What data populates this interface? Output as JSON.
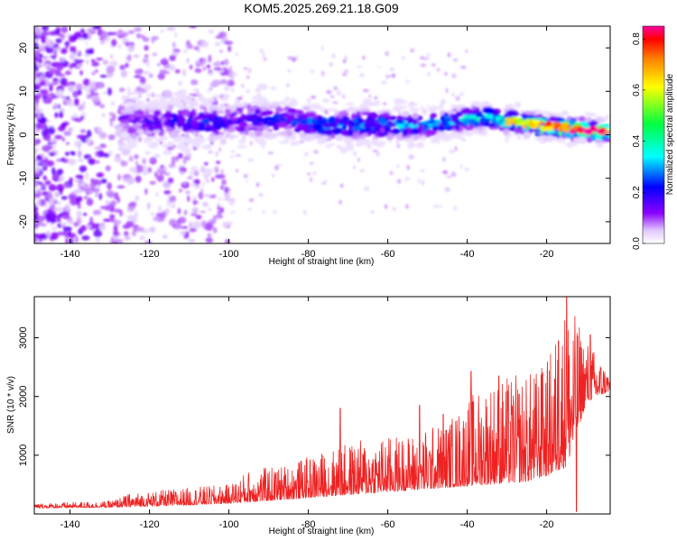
{
  "title": "KOM5.2025.269.21.18.G09",
  "chart_data": [
    {
      "type": "heatmap",
      "name": "spectrogram",
      "xlabel": "Height of straight line (km)",
      "ylabel": "Frequency (Hz)",
      "xlim": [
        -149,
        -4
      ],
      "ylim": [
        -25,
        25
      ],
      "xticks": [
        -140,
        -120,
        -100,
        -80,
        -60,
        -40,
        -20
      ],
      "yticks": [
        -20,
        -10,
        0,
        10,
        20
      ],
      "colorbar": {
        "label": "Normalized spectral amplitude",
        "range": [
          0.0,
          0.85
        ],
        "ticks": [
          0.0,
          0.2,
          0.4,
          0.6,
          0.8
        ],
        "colormap": [
          "#ffffff",
          "#e0c8ff",
          "#8a00ff",
          "#0000ff",
          "#00ffff",
          "#00ff40",
          "#ffff00",
          "#ff8000",
          "#ff0000",
          "#ff00a0"
        ]
      },
      "ridge": [
        {
          "x": -125,
          "y": 3.0,
          "amp": 0.15
        },
        {
          "x": -115,
          "y": 3.0,
          "amp": 0.18
        },
        {
          "x": -105,
          "y": 3.0,
          "amp": 0.22
        },
        {
          "x": -95,
          "y": 3.5,
          "amp": 0.22
        },
        {
          "x": -85,
          "y": 3.5,
          "amp": 0.24
        },
        {
          "x": -75,
          "y": 2.0,
          "amp": 0.28
        },
        {
          "x": -65,
          "y": 2.5,
          "amp": 0.3
        },
        {
          "x": -55,
          "y": 2.0,
          "amp": 0.3
        },
        {
          "x": -45,
          "y": 3.0,
          "amp": 0.32
        },
        {
          "x": -35,
          "y": 4.0,
          "amp": 0.42
        },
        {
          "x": -25,
          "y": 2.5,
          "amp": 0.55
        },
        {
          "x": -15,
          "y": 1.5,
          "amp": 0.65
        },
        {
          "x": -8,
          "y": 1.0,
          "amp": 0.8
        },
        {
          "x": -5,
          "y": 0.8,
          "amp": 0.8
        }
      ]
    },
    {
      "type": "line",
      "name": "snr",
      "xlabel": "Height of straight line (km)",
      "ylabel": "SNR (10 * v/v)",
      "xlim": [
        -149,
        -4
      ],
      "ylim": [
        0,
        3700
      ],
      "xticks": [
        -140,
        -120,
        -100,
        -80,
        -60,
        -40,
        -20
      ],
      "yticks": [
        1000,
        2000,
        3000
      ],
      "color": "#ee2222",
      "envelope": [
        {
          "x": -149,
          "base": 100,
          "peak": 180
        },
        {
          "x": -130,
          "base": 110,
          "peak": 220
        },
        {
          "x": -125,
          "base": 120,
          "peak": 350
        },
        {
          "x": -110,
          "base": 150,
          "peak": 450
        },
        {
          "x": -100,
          "base": 180,
          "peak": 500
        },
        {
          "x": -95,
          "base": 200,
          "peak": 750
        },
        {
          "x": -85,
          "base": 250,
          "peak": 850
        },
        {
          "x": -75,
          "base": 300,
          "peak": 1100
        },
        {
          "x": -65,
          "base": 350,
          "peak": 1300
        },
        {
          "x": -55,
          "base": 400,
          "peak": 1350
        },
        {
          "x": -45,
          "base": 450,
          "peak": 1600
        },
        {
          "x": -35,
          "base": 500,
          "peak": 2300
        },
        {
          "x": -25,
          "base": 550,
          "peak": 2400
        },
        {
          "x": -20,
          "base": 650,
          "peak": 2600
        },
        {
          "x": -15,
          "base": 800,
          "peak": 3700
        },
        {
          "x": -10,
          "base": 1900,
          "peak": 3000
        },
        {
          "x": -4,
          "base": 2100,
          "peak": 2400
        }
      ],
      "spikes": [
        {
          "x": -72,
          "y": 1800
        },
        {
          "x": -52,
          "y": 1850
        },
        {
          "x": -46,
          "y": 1700
        },
        {
          "x": -39,
          "y": 2430
        },
        {
          "x": -32,
          "y": 2350
        },
        {
          "x": -21,
          "y": 2400
        },
        {
          "x": -17,
          "y": 2950
        },
        {
          "x": -15,
          "y": 3700
        },
        {
          "x": -12.5,
          "y": 40
        },
        {
          "x": -9,
          "y": 3050
        }
      ]
    }
  ]
}
